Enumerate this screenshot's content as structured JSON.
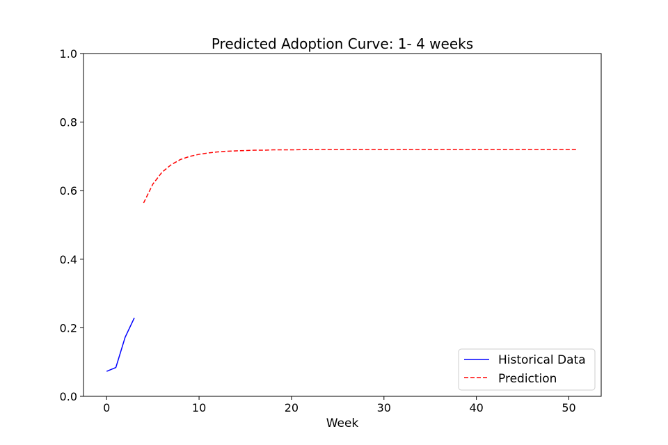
{
  "chart_data": {
    "type": "line",
    "title": "Predicted Adoption Curve:  1- 4 weeks",
    "xlabel": "Week",
    "ylabel": "",
    "xlim": [
      -2.5,
      53.5
    ],
    "ylim": [
      0,
      1
    ],
    "xticks": [
      0,
      10,
      20,
      30,
      40,
      50
    ],
    "yticks": [
      0.0,
      0.2,
      0.4,
      0.6,
      0.8,
      1.0
    ],
    "xtick_labels": [
      "0",
      "10",
      "20",
      "30",
      "40",
      "50"
    ],
    "ytick_labels": [
      "0.0",
      "0.2",
      "0.4",
      "0.6",
      "0.8",
      "1.0"
    ],
    "grid": false,
    "legend_position": "lower-right",
    "series": [
      {
        "name": "Historical Data",
        "color": "#0000ff",
        "style": "solid",
        "x": [
          0,
          1,
          2,
          3
        ],
        "y": [
          0.073,
          0.084,
          0.172,
          0.229
        ]
      },
      {
        "name": "Prediction",
        "color": "#ff0000",
        "style": "dashed",
        "x": [
          4,
          5,
          6,
          7,
          8,
          9,
          10,
          11,
          12,
          13,
          14,
          15,
          16,
          17,
          18,
          19,
          20,
          22,
          24,
          26,
          28,
          30,
          32,
          34,
          36,
          38,
          40,
          42,
          44,
          46,
          48,
          50,
          51
        ],
        "y": [
          0.564,
          0.619,
          0.654,
          0.676,
          0.691,
          0.7,
          0.706,
          0.71,
          0.713,
          0.715,
          0.716,
          0.717,
          0.718,
          0.718,
          0.719,
          0.719,
          0.719,
          0.72,
          0.72,
          0.72,
          0.72,
          0.72,
          0.72,
          0.72,
          0.72,
          0.72,
          0.72,
          0.72,
          0.72,
          0.72,
          0.72,
          0.72,
          0.72
        ]
      }
    ]
  }
}
